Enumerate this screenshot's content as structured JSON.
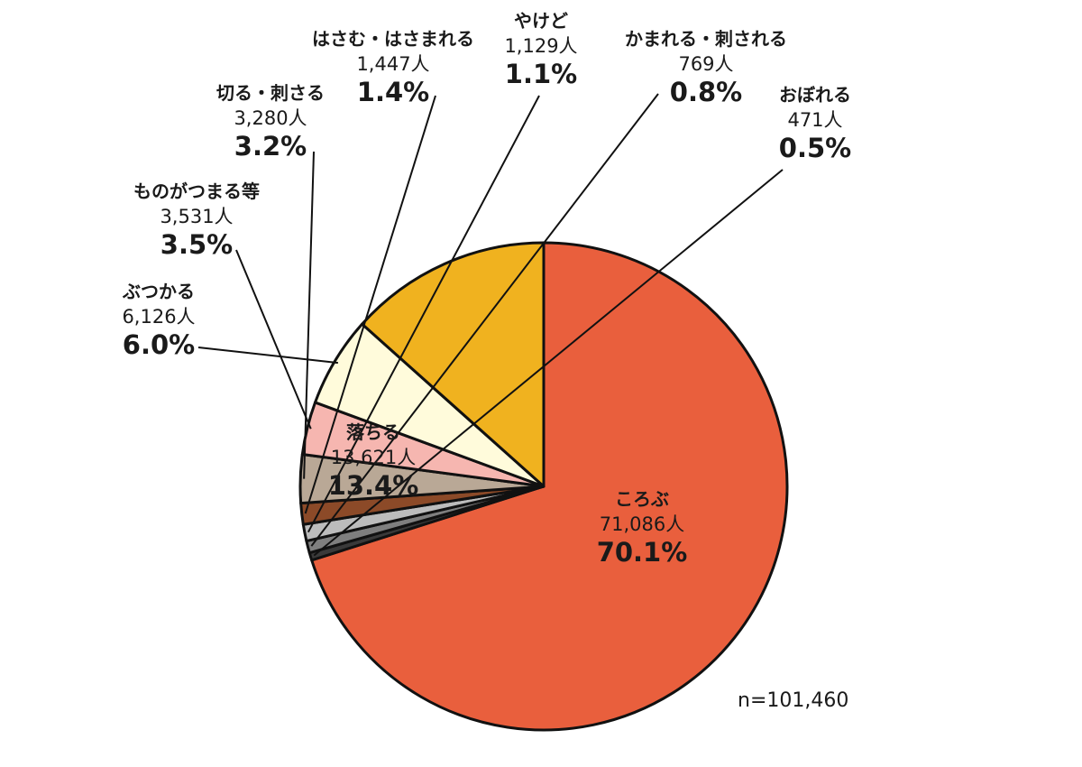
{
  "chart_data": {
    "type": "pie",
    "n_label": "n=101,460",
    "slices": [
      {
        "name": "ころぶ",
        "count": "71,086人",
        "percent": "70.1%",
        "value": 70.1,
        "color": "#e95f3d"
      },
      {
        "name": "おぼれる",
        "count": "471人",
        "percent": "0.5%",
        "value": 0.5,
        "color": "#3a3a3a"
      },
      {
        "name": "かまれる・刺される",
        "count": "769人",
        "percent": "0.8%",
        "value": 0.8,
        "color": "#7f7f7f"
      },
      {
        "name": "やけど",
        "count": "1,129人",
        "percent": "1.1%",
        "value": 1.1,
        "color": "#bcbcbc"
      },
      {
        "name": "はさむ・はさまれる",
        "count": "1,447人",
        "percent": "1.4%",
        "value": 1.4,
        "color": "#8c4a28"
      },
      {
        "name": "切る・刺さる",
        "count": "3,280人",
        "percent": "3.2%",
        "value": 3.2,
        "color": "#b9a896"
      },
      {
        "name": "ものがつまる等",
        "count": "3,531人",
        "percent": "3.5%",
        "value": 3.5,
        "color": "#f6b6b0"
      },
      {
        "name": "ぶつかる",
        "count": "6,126人",
        "percent": "6.0%",
        "value": 6.0,
        "color": "#fffbdb"
      },
      {
        "name": "落ちる",
        "count": "13,621人",
        "percent": "13.4%",
        "value": 13.4,
        "color": "#f0b21f"
      }
    ]
  }
}
